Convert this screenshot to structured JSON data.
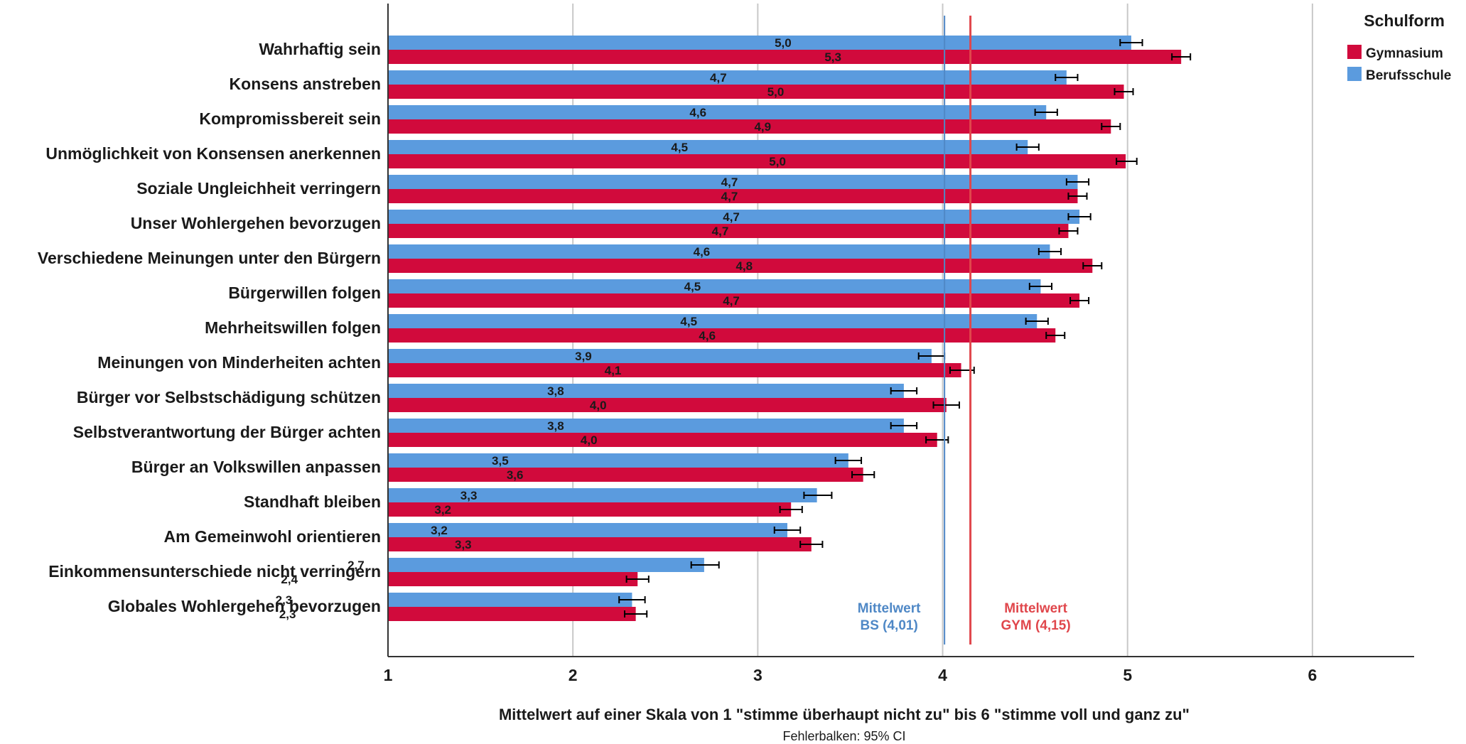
{
  "chart_data": {
    "type": "bar",
    "orientation": "horizontal",
    "categories": [
      "Wahrhaftig sein",
      "Konsens anstreben",
      "Kompromissbereit sein",
      "Unmöglichkeit von Konsensen anerkennen",
      "Soziale Ungleichheit verringern",
      "Unser Wohlergehen bevorzugen",
      "Verschiedene Meinungen unter den Bürgern",
      "Bürgerwillen folgen",
      "Mehrheitswillen folgen",
      "Meinungen von Minderheiten achten",
      "Bürger vor Selbstschädigung schützen",
      "Selbstverantwortung der Bürger achten",
      "Bürger an Volkswillen anpassen",
      "Standhaft bleiben",
      "Am Gemeinwohl orientieren",
      "Einkommensunterschiede nicht verringern",
      "Globales Wohlergehen bevorzugen"
    ],
    "series": [
      {
        "name": "Berufsschule",
        "color": "#5b9bde",
        "values": [
          5.02,
          4.67,
          4.56,
          4.46,
          4.73,
          4.74,
          4.58,
          4.53,
          4.51,
          3.94,
          3.79,
          3.79,
          3.49,
          3.32,
          3.16,
          2.71,
          2.32
        ],
        "labels": [
          "5,0",
          "4,7",
          "4,6",
          "4,5",
          "4,7",
          "4,7",
          "4,6",
          "4,5",
          "4,5",
          "3,9",
          "3,8",
          "3,8",
          "3,5",
          "3,3",
          "3,2",
          "2,7",
          "2,3"
        ],
        "ci": [
          [
            4.96,
            5.08
          ],
          [
            4.61,
            4.73
          ],
          [
            4.5,
            4.62
          ],
          [
            4.4,
            4.52
          ],
          [
            4.67,
            4.79
          ],
          [
            4.68,
            4.8
          ],
          [
            4.52,
            4.64
          ],
          [
            4.47,
            4.59
          ],
          [
            4.45,
            4.57
          ],
          [
            3.87,
            4.01
          ],
          [
            3.72,
            3.86
          ],
          [
            3.72,
            3.86
          ],
          [
            3.42,
            3.56
          ],
          [
            3.25,
            3.4
          ],
          [
            3.09,
            3.23
          ],
          [
            2.64,
            2.79
          ],
          [
            2.25,
            2.39
          ]
        ]
      },
      {
        "name": "Gymnasium",
        "color": "#d10a3c",
        "values": [
          5.29,
          4.98,
          4.91,
          4.99,
          4.73,
          4.68,
          4.81,
          4.74,
          4.61,
          4.1,
          4.02,
          3.97,
          3.57,
          3.18,
          3.29,
          2.35,
          2.34
        ],
        "labels": [
          "5,3",
          "5,0",
          "4,9",
          "5,0",
          "4,7",
          "4,7",
          "4,8",
          "4,7",
          "4,6",
          "4,1",
          "4,0",
          "4,0",
          "3,6",
          "3,2",
          "3,3",
          "2,4",
          "2,3"
        ],
        "ci": [
          [
            5.24,
            5.34
          ],
          [
            4.93,
            5.03
          ],
          [
            4.86,
            4.96
          ],
          [
            4.94,
            5.05
          ],
          [
            4.68,
            4.78
          ],
          [
            4.63,
            4.73
          ],
          [
            4.76,
            4.86
          ],
          [
            4.69,
            4.79
          ],
          [
            4.56,
            4.66
          ],
          [
            4.04,
            4.17
          ],
          [
            3.95,
            4.09
          ],
          [
            3.91,
            4.03
          ],
          [
            3.51,
            3.63
          ],
          [
            3.12,
            3.24
          ],
          [
            3.23,
            3.35
          ],
          [
            2.29,
            2.41
          ],
          [
            2.28,
            2.4
          ]
        ]
      }
    ],
    "xlim": [
      1,
      6.55
    ],
    "xticks": [
      "1",
      "2",
      "3",
      "4",
      "5",
      "6"
    ],
    "xlabel": "Mittelwert auf einer Skala von 1 \"stimme überhaupt nicht zu\" bis 6 \"stimme voll und ganz zu\"",
    "footnote": "Fehlerbalken: 95% CI",
    "grid": true,
    "legend": {
      "title": "Schulform",
      "position": "top-right",
      "entries": [
        "Gymnasium",
        "Berufsschule"
      ]
    },
    "reference_lines": [
      {
        "value": 4.01,
        "color": "#4f88c6",
        "label_line1": "Mittelwert",
        "label_line2": "BS (4,01)"
      },
      {
        "value": 4.15,
        "color": "#e0474c",
        "label_line1": "Mittelwert",
        "label_line2": "GYM (4,15)"
      }
    ]
  }
}
